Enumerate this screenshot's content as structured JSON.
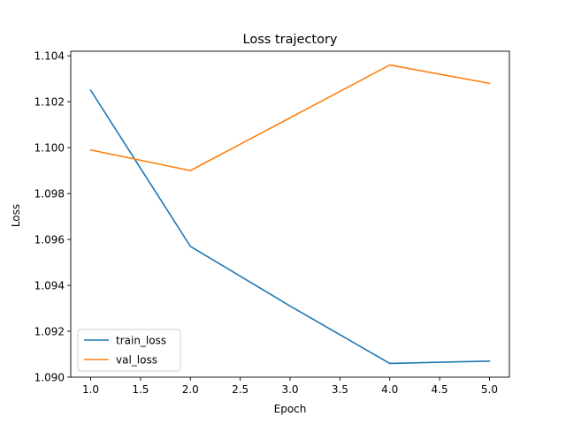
{
  "chart_data": {
    "type": "line",
    "title": "Loss trajectory",
    "xlabel": "Epoch",
    "ylabel": "Loss",
    "x": [
      1,
      2,
      3,
      4,
      5
    ],
    "xlim": [
      0.8,
      5.2
    ],
    "ylim": [
      1.09,
      1.1042
    ],
    "xticks": [
      "1.0",
      "1.5",
      "2.0",
      "2.5",
      "3.0",
      "3.5",
      "4.0",
      "4.5",
      "5.0"
    ],
    "yticks": [
      "1.090",
      "1.092",
      "1.094",
      "1.096",
      "1.098",
      "1.100",
      "1.102",
      "1.104"
    ],
    "series": [
      {
        "name": "train_loss",
        "color": "#1f77b4",
        "values": [
          1.1025,
          1.0957,
          1.0931,
          1.0906,
          1.0907
        ]
      },
      {
        "name": "val_loss",
        "color": "#ff7f0e",
        "values": [
          1.0999,
          1.099,
          1.1013,
          1.1036,
          1.1028
        ]
      }
    ],
    "grid": false,
    "legend_position": "lower-left"
  }
}
